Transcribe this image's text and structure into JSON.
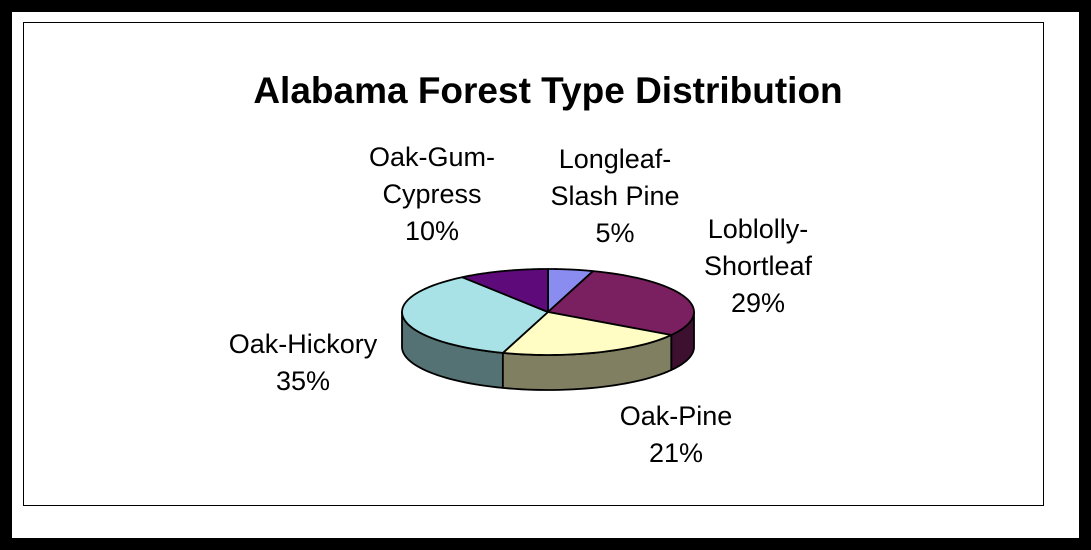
{
  "chart_data": {
    "type": "pie",
    "title": "Alabama Forest Type Distribution",
    "slices": [
      {
        "label_lines": [
          "Longleaf-",
          "Slash Pine"
        ],
        "label": "Longleaf-Slash Pine",
        "value": 5,
        "value_text": "5%",
        "color": "#8a8cf0"
      },
      {
        "label_lines": [
          "Loblolly-",
          "Shortleaf"
        ],
        "label": "Loblolly-Shortleaf",
        "value": 29,
        "value_text": "29%",
        "color": "#7a2060"
      },
      {
        "label_lines": [
          "Oak-Pine"
        ],
        "label": "Oak-Pine",
        "value": 21,
        "value_text": "21%",
        "color": "#fffdc4"
      },
      {
        "label_lines": [
          "Oak-Hickory"
        ],
        "label": "Oak-Hickory",
        "value": 35,
        "value_text": "35%",
        "color": "#a8e2e6"
      },
      {
        "label_lines": [
          "Oak-Gum-",
          "Cypress"
        ],
        "label": "Oak-Gum-Cypress",
        "value": 10,
        "value_text": "10%",
        "color": "#5e0a7a"
      }
    ],
    "style": "3d-pie",
    "legend": "none",
    "data_labels": "category-and-percent"
  }
}
